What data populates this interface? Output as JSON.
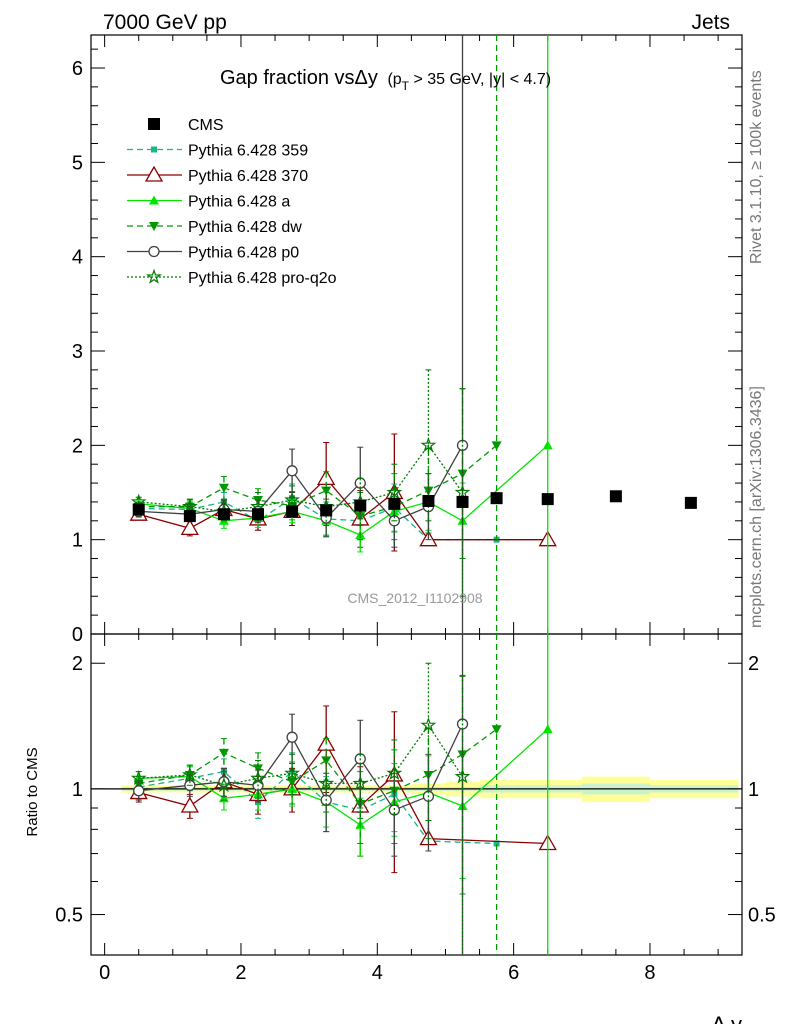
{
  "header": {
    "left": "7000 GeV pp",
    "right": "Jets"
  },
  "side_labels": {
    "rivet": "Rivet 3.1.10, ≥ 100k events",
    "mcplots": "mcplots.cern.ch [arXiv:1306.3436]"
  },
  "watermark": "CMS_2012_I1102908",
  "colors": {
    "cms": "#000000",
    "p359": "#1ab58a",
    "p370": "#8b0000",
    "pa": "#00e600",
    "pdw": "#009900",
    "pp0": "#404040",
    "pq2o": "#007a00",
    "band_outer": "#ffff99",
    "band_inner": "#ccf2cc"
  },
  "chart_data": [
    {
      "type": "scatter",
      "title": "Gap fraction vsΔy",
      "title_cut": "(pT > 35 GeV, |y| < 4.7)",
      "title_cut_parts": {
        "a": "(p",
        "sub": "T",
        "b": " > 35 GeV, |y| < 4.7)"
      },
      "xlabel": "Δ y",
      "ylabel": "",
      "xlim": [
        -0.2,
        9.35
      ],
      "ylim": [
        0,
        6.35
      ],
      "xticks": [
        "0",
        "2",
        "4",
        "6",
        "8"
      ],
      "yticks": [
        "0",
        "1",
        "2",
        "3",
        "4",
        "5",
        "6"
      ],
      "legend_position": "top-left",
      "series": [
        {
          "name": "CMS",
          "key": "cms",
          "marker": "square",
          "line": "none",
          "x": [
            0.5,
            1.25,
            1.75,
            2.25,
            2.75,
            3.25,
            3.75,
            4.25,
            4.75,
            5.25,
            5.75,
            6.5,
            7.5,
            8.6
          ],
          "y": [
            1.32,
            1.25,
            1.27,
            1.27,
            1.3,
            1.31,
            1.36,
            1.38,
            1.41,
            1.4,
            1.44,
            1.43,
            1.46,
            1.39
          ]
        },
        {
          "name": "Pythia 6.428 359",
          "key": "p359",
          "marker": "square-small",
          "line": "dashed",
          "x": [
            0.5,
            1.25,
            1.75,
            2.25,
            2.75,
            3.25,
            3.75,
            4.25,
            4.75,
            5.75
          ],
          "y": [
            1.33,
            1.32,
            1.4,
            1.2,
            1.44,
            1.22,
            1.2,
            1.34,
            1.0,
            1.0
          ],
          "err": [
            0.06,
            0.08,
            0.1,
            0.1,
            0.15,
            0.18,
            0.2,
            0.25,
            0,
            0
          ]
        },
        {
          "name": "Pythia 6.428 370",
          "key": "p370",
          "marker": "triangle-open",
          "line": "solid",
          "x": [
            0.5,
            1.25,
            1.75,
            2.25,
            2.75,
            3.25,
            3.75,
            4.25,
            4.75,
            6.5
          ],
          "y": [
            1.27,
            1.12,
            1.32,
            1.22,
            1.3,
            1.65,
            1.22,
            1.5,
            1.0,
            1.0
          ],
          "err": [
            0.06,
            0.08,
            0.1,
            0.12,
            0.15,
            0.38,
            0.3,
            0.62,
            0,
            0
          ]
        },
        {
          "name": "Pythia 6.428 a",
          "key": "pa",
          "marker": "triangle-up",
          "line": "solid",
          "x": [
            0.5,
            1.25,
            1.75,
            2.25,
            2.75,
            3.25,
            3.75,
            4.25,
            4.75,
            5.25,
            6.5
          ],
          "y": [
            1.38,
            1.33,
            1.2,
            1.23,
            1.3,
            1.2,
            1.05,
            1.3,
            1.4,
            1.2,
            2.0
          ],
          "err": [
            0.05,
            0.07,
            0.08,
            0.1,
            0.12,
            0.15,
            0.18,
            0.22,
            0.3,
            0.4,
            4.5
          ]
        },
        {
          "name": "Pythia 6.428 dw",
          "key": "pdw",
          "marker": "triangle-down",
          "line": "dashed",
          "x": [
            0.5,
            1.25,
            1.75,
            2.25,
            2.75,
            3.25,
            3.75,
            4.25,
            4.75,
            5.25,
            5.75
          ],
          "y": [
            1.35,
            1.35,
            1.55,
            1.42,
            1.36,
            1.52,
            1.25,
            1.35,
            1.52,
            1.7,
            2.0
          ],
          "err": [
            0.05,
            0.07,
            0.12,
            0.12,
            0.15,
            0.2,
            0.25,
            0.35,
            0.45,
            0.9,
            5.0
          ]
        },
        {
          "name": "Pythia 6.428 p0",
          "key": "pp0",
          "marker": "circle-open",
          "line": "solid",
          "x": [
            0.5,
            1.25,
            1.75,
            2.25,
            2.75,
            3.25,
            3.75,
            4.25,
            4.75,
            5.25
          ],
          "y": [
            1.3,
            1.27,
            1.32,
            1.3,
            1.73,
            1.23,
            1.6,
            1.2,
            1.35,
            2.0
          ],
          "err": [
            0.06,
            0.08,
            0.1,
            0.12,
            0.23,
            0.2,
            0.38,
            0.28,
            0.35,
            5.0
          ]
        },
        {
          "name": "Pythia 6.428 pro-q2o",
          "key": "pq2o",
          "marker": "star",
          "line": "dotted",
          "x": [
            0.5,
            1.25,
            1.75,
            2.25,
            2.75,
            3.25,
            3.75,
            4.25,
            4.75,
            5.25
          ],
          "y": [
            1.4,
            1.35,
            1.3,
            1.35,
            1.42,
            1.35,
            1.4,
            1.5,
            2.0,
            1.5
          ],
          "err": [
            0.05,
            0.08,
            0.1,
            0.15,
            0.15,
            0.2,
            0.25,
            0.3,
            0.8,
            1.1
          ]
        }
      ]
    },
    {
      "type": "scatter",
      "title": "",
      "xlabel": "Δ y",
      "ylabel": "Ratio to CMS",
      "ylim": [
        0.4,
        2.35
      ],
      "ylog": true,
      "yticks": [
        "0.5",
        "1",
        "2"
      ],
      "band": {
        "x": [
          0.25,
          1.0,
          1.5,
          2.0,
          2.5,
          3.0,
          3.5,
          4.0,
          4.5,
          5.0,
          5.5,
          6.0,
          7.0,
          8.0,
          9.3
        ],
        "outer": [
          0.02,
          0.02,
          0.02,
          0.02,
          0.02,
          0.02,
          0.02,
          0.02,
          0.03,
          0.04,
          0.05,
          0.05,
          0.07,
          0.05
        ],
        "inner": [
          0.01,
          0.01,
          0.01,
          0.01,
          0.01,
          0.01,
          0.01,
          0.01,
          0.01,
          0.01,
          0.02,
          0.02,
          0.03,
          0.02
        ]
      },
      "series": [
        {
          "key": "p359",
          "x": [
            0.5,
            1.25,
            1.75,
            2.25,
            2.75,
            3.25,
            3.75,
            4.25,
            4.75,
            5.75
          ],
          "y": [
            1.01,
            1.06,
            1.1,
            0.93,
            1.1,
            0.93,
            0.89,
            0.97,
            0.75,
            0.74
          ],
          "err": [
            0.05,
            0.07,
            0.08,
            0.08,
            0.12,
            0.14,
            0.15,
            0.18,
            0,
            0
          ]
        },
        {
          "key": "p370",
          "x": [
            0.5,
            1.25,
            1.75,
            2.25,
            2.75,
            3.25,
            3.75,
            4.25,
            4.75,
            6.5
          ],
          "y": [
            0.98,
            0.91,
            1.04,
            0.97,
            1.0,
            1.28,
            0.91,
            1.08,
            0.76,
            0.74
          ],
          "err": [
            0.05,
            0.06,
            0.08,
            0.1,
            0.12,
            0.3,
            0.22,
            0.45,
            0,
            0
          ]
        },
        {
          "key": "pa",
          "x": [
            0.5,
            1.25,
            1.75,
            2.25,
            2.75,
            3.25,
            3.75,
            4.25,
            4.75,
            5.25,
            6.5
          ],
          "y": [
            1.06,
            1.07,
            0.95,
            0.97,
            1.0,
            0.93,
            0.82,
            0.93,
            0.98,
            0.91,
            1.39
          ],
          "err": [
            0.04,
            0.06,
            0.06,
            0.08,
            0.09,
            0.12,
            0.13,
            0.16,
            0.22,
            0.3,
            3.0
          ]
        },
        {
          "key": "pdw",
          "x": [
            0.5,
            1.25,
            1.75,
            2.25,
            2.75,
            3.25,
            3.75,
            4.25,
            4.75,
            5.25,
            5.75
          ],
          "y": [
            1.03,
            1.08,
            1.22,
            1.12,
            1.04,
            1.17,
            0.92,
            0.99,
            1.08,
            1.21,
            1.39
          ],
          "err": [
            0.04,
            0.06,
            0.1,
            0.1,
            0.12,
            0.15,
            0.18,
            0.25,
            0.32,
            0.65,
            3.0
          ]
        },
        {
          "key": "pp0",
          "x": [
            0.5,
            1.25,
            1.75,
            2.25,
            2.75,
            3.25,
            3.75,
            4.25,
            4.75,
            5.25
          ],
          "y": [
            0.99,
            1.02,
            1.04,
            1.02,
            1.33,
            0.94,
            1.18,
            0.89,
            0.96,
            1.43
          ],
          "err": [
            0.05,
            0.06,
            0.08,
            0.09,
            0.18,
            0.15,
            0.28,
            0.2,
            0.25,
            3.0
          ]
        },
        {
          "key": "pq2o",
          "x": [
            0.5,
            1.25,
            1.75,
            2.25,
            2.75,
            3.25,
            3.75,
            4.25,
            4.75,
            5.25
          ],
          "y": [
            1.06,
            1.08,
            1.02,
            1.06,
            1.09,
            1.03,
            1.03,
            1.09,
            1.42,
            1.07
          ],
          "err": [
            0.04,
            0.06,
            0.08,
            0.11,
            0.12,
            0.15,
            0.18,
            0.22,
            0.58,
            0.8
          ]
        }
      ]
    }
  ]
}
